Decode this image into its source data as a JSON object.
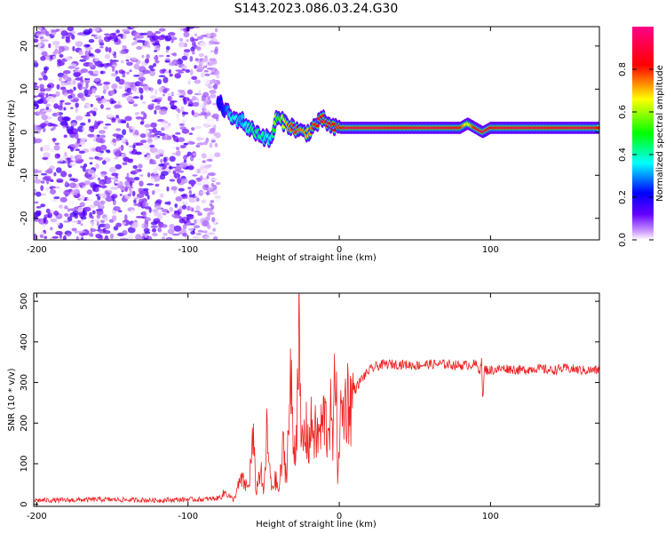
{
  "title": "S143.2023.086.03.24.G30",
  "colors": {
    "trace": "#ee2222",
    "points": "#7700ee",
    "axis": "#000000"
  },
  "chart_data": [
    {
      "type": "heatmap",
      "title": "S143.2023.086.03.24.G30",
      "xlabel": "Height of straight line (km)",
      "ylabel": "Frequency (Hz)",
      "xlim": [
        -202,
        172
      ],
      "ylim": [
        -25,
        24.5
      ],
      "x_ticks": [
        -200,
        -100,
        0,
        100
      ],
      "x_tick_labels": [
        "-200",
        "-100",
        "0",
        "100"
      ],
      "y_ticks": [
        -20,
        -10,
        0,
        10,
        20
      ],
      "y_tick_labels": [
        "-20",
        "-10",
        "0",
        "10",
        "20"
      ],
      "colorbar": {
        "label": "Normalized spectral amplitude",
        "range": [
          0,
          1
        ],
        "ticks": [
          0.0,
          0.2,
          0.4,
          0.6,
          0.8
        ],
        "tick_labels": [
          "0.0",
          "0.2",
          "0.4",
          "0.6",
          "0.8"
        ],
        "colormap": [
          "#ffffff",
          "#cc99ff",
          "#6600ff",
          "#0000ff",
          "#00ffff",
          "#00ff00",
          "#ffff00",
          "#ff0000",
          "#ff0088"
        ]
      },
      "noise_region": {
        "x_range": [
          -202,
          -80
        ],
        "y_range": [
          -25,
          24.5
        ],
        "amplitude": 0.1
      },
      "ridge": {
        "x": [
          -80,
          -75,
          -70,
          -65,
          -60,
          -55,
          -50,
          -45,
          -42,
          -40,
          -35,
          -30,
          -25,
          -20,
          -15,
          -10,
          -5,
          0,
          5,
          10,
          20,
          40,
          60,
          80,
          85,
          90,
          95,
          100,
          120,
          140,
          160,
          172
        ],
        "freq": [
          7,
          5,
          3,
          3,
          1,
          0,
          -1,
          -2,
          3,
          3,
          2,
          1,
          0,
          0,
          2,
          3,
          1,
          1,
          1,
          1,
          1,
          1,
          1,
          1,
          2,
          1,
          0,
          1,
          1,
          1,
          1,
          1
        ],
        "amplitude": [
          0.2,
          0.25,
          0.4,
          0.3,
          0.4,
          0.45,
          0.4,
          0.35,
          0.6,
          0.5,
          0.7,
          0.8,
          0.75,
          0.7,
          0.85,
          0.8,
          0.85,
          0.8,
          0.9,
          0.9,
          0.9,
          0.85,
          0.9,
          0.85,
          0.6,
          0.85,
          0.9,
          0.85,
          0.9,
          0.85,
          0.9,
          0.85
        ]
      }
    },
    {
      "type": "line",
      "xlabel": "Height of straight line (km)",
      "ylabel": "SNR (10 * v/v)",
      "xlim": [
        -202,
        172
      ],
      "ylim": [
        -5,
        520
      ],
      "x_ticks": [
        -200,
        -100,
        0,
        100
      ],
      "x_tick_labels": [
        "-200",
        "-100",
        "0",
        "100"
      ],
      "y_ticks": [
        0,
        100,
        200,
        300,
        400,
        500
      ],
      "y_tick_labels": [
        "0",
        "100",
        "200",
        "300",
        "400",
        "500"
      ],
      "series": [
        {
          "x": [
            -202,
            -180,
            -160,
            -140,
            -120,
            -100,
            -90,
            -80,
            -75,
            -70,
            -65,
            -60,
            -57,
            -55,
            -52,
            -50,
            -48,
            -45,
            -42,
            -40,
            -37,
            -35,
            -32,
            -30,
            -28,
            -27,
            -26,
            -25,
            -22,
            -20,
            -18,
            -15,
            -12,
            -10,
            -8,
            -6,
            -4,
            -2,
            -1,
            0,
            2,
            5,
            8,
            10,
            15,
            20,
            25,
            30,
            40,
            50,
            60,
            70,
            80,
            90,
            93,
            94,
            95,
            96,
            98,
            100,
            110,
            120,
            130,
            140,
            150,
            160,
            172
          ],
          "y": [
            10,
            10,
            12,
            11,
            10,
            12,
            12,
            15,
            30,
            10,
            60,
            40,
            160,
            30,
            90,
            20,
            170,
            40,
            60,
            30,
            140,
            70,
            300,
            120,
            200,
            510,
            250,
            140,
            180,
            150,
            200,
            160,
            180,
            220,
            180,
            230,
            140,
            440,
            10,
            200,
            220,
            260,
            250,
            280,
            310,
            330,
            340,
            345,
            345,
            342,
            345,
            345,
            342,
            345,
            330,
            360,
            250,
            335,
            330,
            330,
            335,
            330,
            335,
            330,
            335,
            330,
            330
          ]
        }
      ]
    }
  ]
}
